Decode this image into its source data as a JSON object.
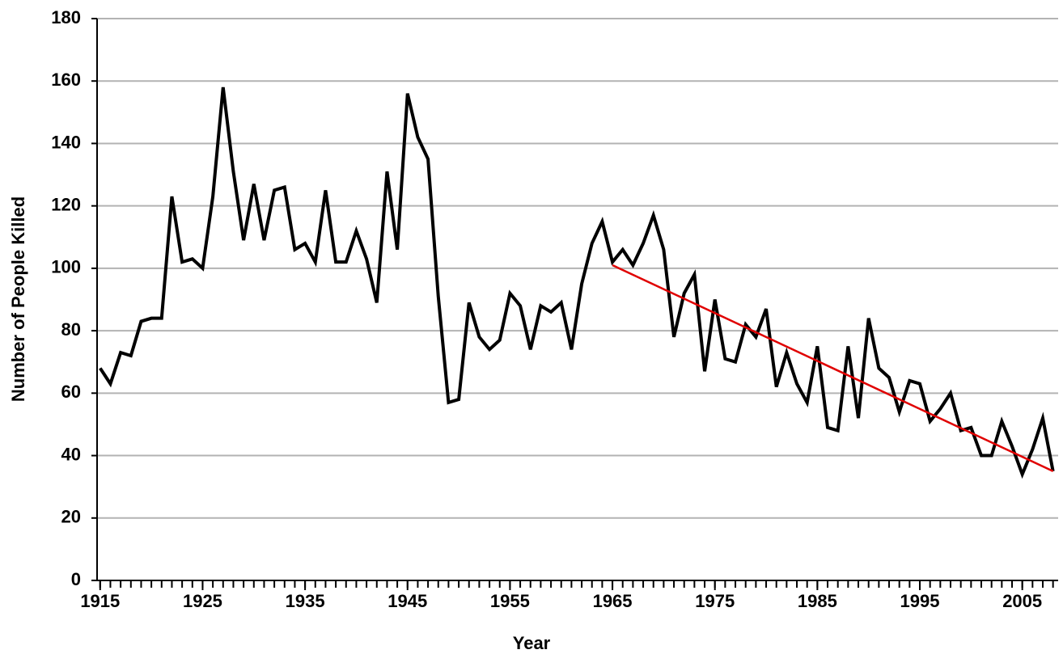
{
  "chart_data": {
    "type": "line",
    "x_label": "Year",
    "y_label": "Number of People Killed",
    "x": [
      1915,
      1916,
      1917,
      1918,
      1919,
      1920,
      1921,
      1922,
      1923,
      1924,
      1925,
      1926,
      1927,
      1928,
      1929,
      1930,
      1931,
      1932,
      1933,
      1934,
      1935,
      1936,
      1937,
      1938,
      1939,
      1940,
      1941,
      1942,
      1943,
      1944,
      1945,
      1946,
      1947,
      1948,
      1949,
      1950,
      1951,
      1952,
      1953,
      1954,
      1955,
      1956,
      1957,
      1958,
      1959,
      1960,
      1961,
      1962,
      1963,
      1964,
      1965,
      1966,
      1967,
      1968,
      1969,
      1970,
      1971,
      1972,
      1973,
      1974,
      1975,
      1976,
      1977,
      1978,
      1979,
      1980,
      1981,
      1982,
      1983,
      1984,
      1985,
      1986,
      1987,
      1988,
      1989,
      1990,
      1991,
      1992,
      1993,
      1994,
      1995,
      1996,
      1997,
      1998,
      1999,
      2000,
      2001,
      2002,
      2003,
      2004,
      2005,
      2006,
      2007,
      2008
    ],
    "series": [
      {
        "color": "#000000",
        "values": [
          68,
          63,
          73,
          72,
          83,
          84,
          84,
          123,
          102,
          103,
          100,
          123,
          158,
          131,
          109,
          127,
          109,
          125,
          126,
          106,
          108,
          102,
          125,
          102,
          102,
          112,
          103,
          89,
          131,
          106,
          156,
          142,
          135,
          91,
          57,
          58,
          89,
          78,
          74,
          77,
          92,
          88,
          74,
          88,
          86,
          89,
          74,
          95,
          108,
          115,
          102,
          106,
          101,
          108,
          117,
          106,
          78,
          92,
          98,
          67,
          90,
          71,
          70,
          82,
          78,
          87,
          62,
          73,
          63,
          57,
          75,
          49,
          48,
          75,
          52,
          84,
          68,
          65,
          54,
          64,
          63,
          51,
          55,
          60,
          48,
          49,
          40,
          40,
          51,
          43,
          34,
          42,
          52,
          35
        ]
      },
      {
        "color": "#e00000",
        "x": [
          1965,
          2008
        ],
        "values": [
          101,
          35
        ]
      }
    ],
    "xlim": [
      1914.7,
      2008.5
    ],
    "xticks": [
      1915,
      1925,
      1935,
      1945,
      1955,
      1965,
      1975,
      1985,
      1995,
      2005
    ],
    "ylim": [
      0,
      180
    ],
    "yticks": [
      0,
      20,
      40,
      60,
      80,
      100,
      120,
      140,
      160,
      180
    ],
    "grid": true
  }
}
